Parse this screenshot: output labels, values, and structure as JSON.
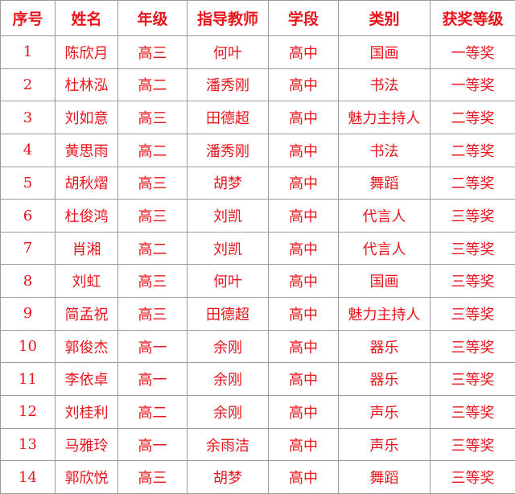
{
  "table": {
    "header": [
      "序号",
      "姓名",
      "年级",
      "指导教师",
      "学段",
      "类别",
      "获奖等级"
    ],
    "rows": [
      [
        "1",
        "陈欣月",
        "高三",
        "何叶",
        "高中",
        "国画",
        "一等奖"
      ],
      [
        "2",
        "杜林泓",
        "高二",
        "潘秀刚",
        "高中",
        "书法",
        "一等奖"
      ],
      [
        "3",
        "刘如意",
        "高三",
        "田德超",
        "高中",
        "魅力主持人",
        "二等奖"
      ],
      [
        "4",
        "黄思雨",
        "高二",
        "潘秀刚",
        "高中",
        "书法",
        "二等奖"
      ],
      [
        "5",
        "胡秋熠",
        "高三",
        "胡梦",
        "高中",
        "舞蹈",
        "二等奖"
      ],
      [
        "6",
        "杜俊鸿",
        "高三",
        "刘凯",
        "高中",
        "代言人",
        "三等奖"
      ],
      [
        "7",
        "肖湘",
        "高二",
        "刘凯",
        "高中",
        "代言人",
        "三等奖"
      ],
      [
        "8",
        "刘虹",
        "高三",
        "何叶",
        "高中",
        "国画",
        "三等奖"
      ],
      [
        "9",
        "简孟祝",
        "高三",
        "田德超",
        "高中",
        "魅力主持人",
        "三等奖"
      ],
      [
        "10",
        "郭俊杰",
        "高一",
        "余刚",
        "高中",
        "器乐",
        "三等奖"
      ],
      [
        "11",
        "李依卓",
        "高一",
        "余刚",
        "高中",
        "器乐",
        "三等奖"
      ],
      [
        "12",
        "刘桂利",
        "高二",
        "余刚",
        "高中",
        "声乐",
        "三等奖"
      ],
      [
        "13",
        "马雅玲",
        "高一",
        "余雨洁",
        "高中",
        "声乐",
        "三等奖"
      ],
      [
        "14",
        "郭欣悦",
        "高三",
        "胡梦",
        "高中",
        "舞蹈",
        "三等奖"
      ]
    ]
  }
}
